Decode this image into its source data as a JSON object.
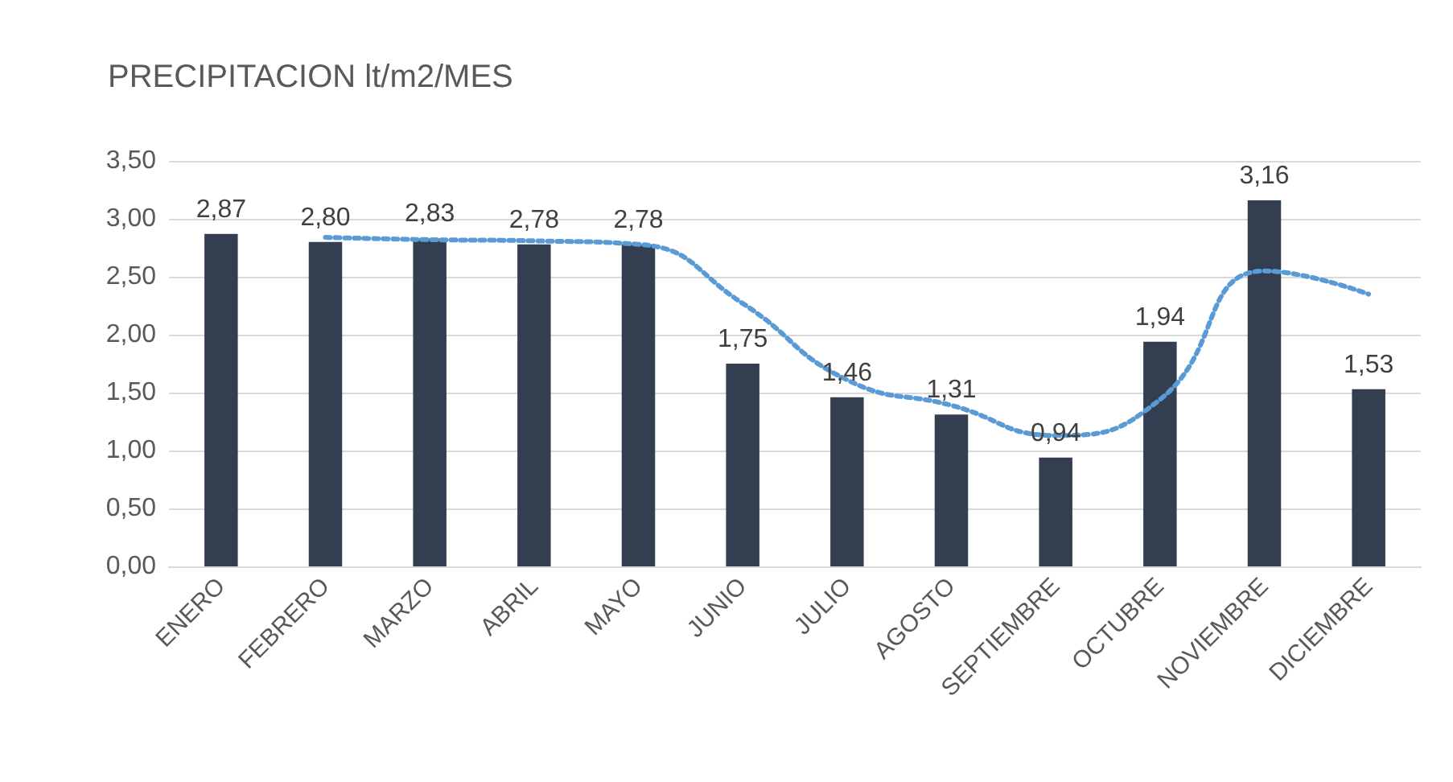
{
  "chart_data": {
    "type": "bar",
    "title": "PRECIPITACION lt/m2/MES",
    "categories": [
      "ENERO",
      "FEBRERO",
      "MARZO",
      "ABRIL",
      "MAYO",
      "JUNIO",
      "JULIO",
      "AGOSTO",
      "SEPTIEMBRE",
      "OCTUBRE",
      "NOVIEMBRE",
      "DICIEMBRE"
    ],
    "series": [
      {
        "color": "#333f50",
        "values": [
          2.87,
          2.8,
          2.83,
          2.78,
          2.78,
          1.75,
          1.46,
          1.31,
          0.94,
          1.94,
          3.16,
          1.53
        ],
        "value_labels": [
          "2,87",
          "2,80",
          "2,83",
          "2,78",
          "2,78",
          "1,75",
          "1,46",
          "1,31",
          "0,94",
          "1,94",
          "3,16",
          "1,53"
        ]
      },
      {
        "type": "line",
        "color": "#5b9bd5",
        "line_style": "dotted",
        "marker": "none",
        "values": [
          null,
          2.84,
          2.82,
          2.81,
          2.78,
          2.27,
          1.61,
          1.39,
          1.13,
          1.44,
          2.55,
          2.35
        ]
      }
    ],
    "ylim": [
      0,
      3.5
    ],
    "yticks": [
      {
        "value": 0,
        "label": "0,00"
      },
      {
        "value": 0.5,
        "label": "0,50"
      },
      {
        "value": 1,
        "label": "1,00"
      },
      {
        "value": 1.5,
        "label": "1,50"
      },
      {
        "value": 2,
        "label": "2,00"
      },
      {
        "value": 2.5,
        "label": "2,50"
      },
      {
        "value": 3,
        "label": "3,00"
      },
      {
        "value": 3.5,
        "label": "3,50"
      }
    ],
    "grid": "y"
  }
}
